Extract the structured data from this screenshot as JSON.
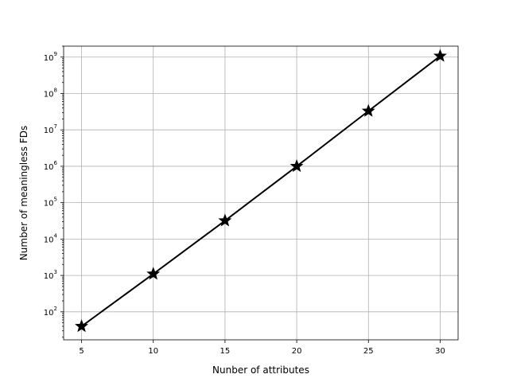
{
  "chart_data": {
    "type": "line",
    "title": "",
    "xlabel": "Nunber of attributes",
    "ylabel": "Number of meaningless FDs",
    "yscale": "log",
    "grid": true,
    "xlim": [
      3.75,
      31.25
    ],
    "ylim": [
      17,
      2000000000
    ],
    "xticks": [
      5,
      10,
      15,
      20,
      25,
      30
    ],
    "yticks": [
      {
        "value": 100,
        "base": "10",
        "exp": "2"
      },
      {
        "value": 1000,
        "base": "10",
        "exp": "3"
      },
      {
        "value": 10000,
        "base": "10",
        "exp": "4"
      },
      {
        "value": 100000,
        "base": "10",
        "exp": "5"
      },
      {
        "value": 1000000,
        "base": "10",
        "exp": "6"
      },
      {
        "value": 10000000,
        "base": "10",
        "exp": "7"
      },
      {
        "value": 100000000,
        "base": "10",
        "exp": "8"
      },
      {
        "value": 1000000000,
        "base": "10",
        "exp": "9"
      }
    ],
    "series": [
      {
        "color": "#000000",
        "marker": "star",
        "x": [
          5,
          10,
          15,
          20,
          25,
          30
        ],
        "y": [
          40,
          1100,
          32000,
          1000000,
          33000000,
          1070000000
        ]
      }
    ]
  }
}
